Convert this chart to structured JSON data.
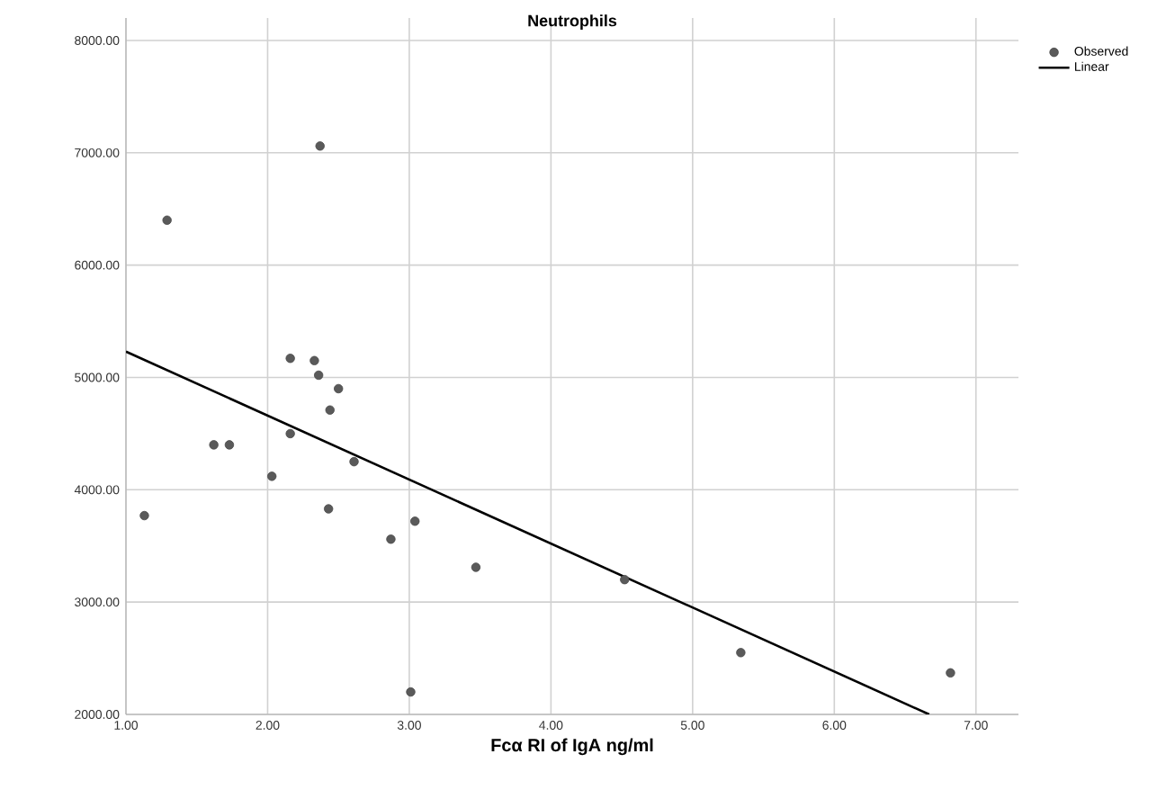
{
  "chart_data": {
    "type": "scatter",
    "title": "Neutrophils",
    "xlabel": "Fcα RI of IgA ng/ml",
    "xlim": [
      1,
      7.3
    ],
    "ylim": [
      2000,
      8200
    ],
    "xticks": [
      {
        "value": 1,
        "label": "1.00"
      },
      {
        "value": 2,
        "label": "2.00"
      },
      {
        "value": 3,
        "label": "3.00"
      },
      {
        "value": 4,
        "label": "4.00"
      },
      {
        "value": 5,
        "label": "5.00"
      },
      {
        "value": 6,
        "label": "6.00"
      },
      {
        "value": 7,
        "label": "7.00"
      }
    ],
    "yticks": [
      {
        "value": 2000,
        "label": "2000.00"
      },
      {
        "value": 3000,
        "label": "3000.00"
      },
      {
        "value": 4000,
        "label": "4000.00"
      },
      {
        "value": 5000,
        "label": "5000.00"
      },
      {
        "value": 6000,
        "label": "6000.00"
      },
      {
        "value": 7000,
        "label": "7000.00"
      },
      {
        "value": 8000,
        "label": "8000.00"
      }
    ],
    "grid": true,
    "legend": "top right",
    "series": [
      {
        "name": "Observed",
        "marker": "circle",
        "color": "#5a5a5a",
        "x": [
          1.29,
          2.37,
          2.16,
          2.33,
          2.36,
          2.5,
          2.44,
          2.16,
          1.62,
          1.73,
          2.61,
          2.03,
          1.13,
          2.43,
          3.04,
          2.87,
          3.47,
          3.01,
          4.52,
          5.34,
          6.82
        ],
        "values": [
          6400,
          7060,
          5170,
          5150,
          5020,
          4900,
          4710,
          4500,
          4400,
          4400,
          4250,
          4120,
          3770,
          3830,
          3720,
          3560,
          3310,
          2200,
          3200,
          2550,
          2370
        ]
      },
      {
        "name": "Linear",
        "type": "line",
        "marker": "none",
        "line_style": "solid",
        "color": "#000000",
        "x": [
          1.0,
          6.67
        ],
        "values": [
          5230,
          2000
        ]
      }
    ]
  }
}
